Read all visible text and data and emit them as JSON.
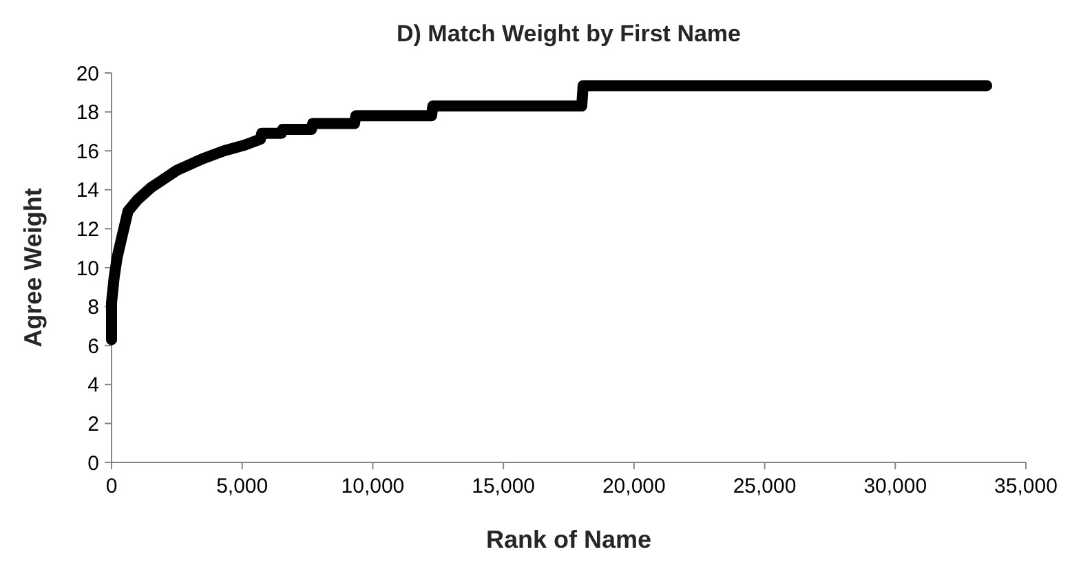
{
  "chart_data": {
    "type": "line",
    "title": "D) Match Weight by First Name",
    "xlabel": "Rank of Name",
    "ylabel": "Agree Weight",
    "xlim": [
      0,
      35000
    ],
    "xticks": [
      {
        "value": 0,
        "label": "0"
      },
      {
        "value": 5000,
        "label": "5,000"
      },
      {
        "value": 10000,
        "label": "10,000"
      },
      {
        "value": 15000,
        "label": "15,000"
      },
      {
        "value": 20000,
        "label": "20,000"
      },
      {
        "value": 25000,
        "label": "25,000"
      },
      {
        "value": 30000,
        "label": "30,000"
      },
      {
        "value": 35000,
        "label": "35,000"
      }
    ],
    "ylim": [
      0,
      20
    ],
    "yticks": [
      0,
      2,
      4,
      6,
      8,
      10,
      12,
      14,
      16,
      18,
      20
    ],
    "grid": false,
    "line_style": "solid",
    "marker": "none",
    "series": [
      {
        "color": "#000000",
        "x": [
          0,
          0,
          100,
          210,
          400,
          630,
          1000,
          1500,
          2500,
          3500,
          4300,
          5100,
          5700,
          5750,
          6500,
          6550,
          7650,
          7700,
          9300,
          9350,
          12250,
          12300,
          18000,
          18050,
          33500
        ],
        "values": [
          6.3,
          8.2,
          9.5,
          10.5,
          11.6,
          12.9,
          13.5,
          14.1,
          15.0,
          15.6,
          16.0,
          16.3,
          16.6,
          16.9,
          16.9,
          17.1,
          17.1,
          17.4,
          17.4,
          17.8,
          17.8,
          18.3,
          18.3,
          19.35,
          19.35
        ]
      }
    ]
  }
}
